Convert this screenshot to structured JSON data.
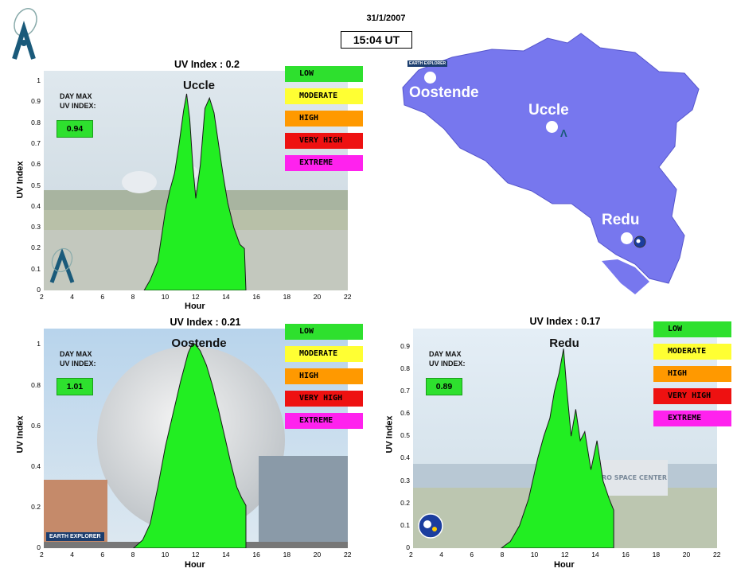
{
  "header": {
    "date": "31/1/2007",
    "time": "15:04 UT"
  },
  "legend": [
    "LOW",
    "MODERATE",
    "HIGH",
    "VERY HIGH",
    "EXTREME"
  ],
  "legend_colors": [
    "#2ee02e",
    "#ffff33",
    "#ff9900",
    "#ee1111",
    "#ff22ee"
  ],
  "panels": {
    "uccle": {
      "title": "UV Index : 0.2",
      "site": "Uccle",
      "daymax_label_1": "DAY MAX",
      "daymax_label_2": "UV INDEX:",
      "daymax_value": "0.94",
      "xlabel": "Hour",
      "ylabel": "UV Index"
    },
    "oostende": {
      "title": "UV Index : 0.21",
      "site": "Oostende",
      "daymax_label_1": "DAY MAX",
      "daymax_label_2": "UV INDEX:",
      "daymax_value": "1.01",
      "xlabel": "Hour",
      "ylabel": "UV Index",
      "badge": "EARTH EXPLORER"
    },
    "redu": {
      "title": "UV Index : 0.17",
      "site": "Redu",
      "daymax_label_1": "DAY MAX",
      "daymax_label_2": "UV INDEX:",
      "daymax_value": "0.89",
      "xlabel": "Hour",
      "ylabel": "UV Index",
      "sign": "EURO SPACE CENTER"
    }
  },
  "map": {
    "labels": {
      "oostende": "Oostende",
      "uccle": "Uccle",
      "redu": "Redu"
    },
    "badge": "EARTH EXPLORER",
    "fill": "#7777ee"
  },
  "chart_data": [
    {
      "type": "area",
      "title": "UV Index : 0.2",
      "subtitle": "Uccle",
      "xlabel": "Hour",
      "ylabel": "UV Index",
      "xlim": [
        2,
        22
      ],
      "ylim": [
        0,
        1.05
      ],
      "xticks": [
        2,
        4,
        6,
        8,
        10,
        12,
        14,
        16,
        18,
        20,
        22
      ],
      "yticks": [
        0,
        0.1,
        0.2,
        0.3,
        0.4,
        0.5,
        0.6,
        0.7,
        0.8,
        0.9,
        1
      ],
      "x": [
        8.6,
        9.0,
        9.5,
        10.0,
        10.3,
        10.6,
        10.9,
        11.2,
        11.4,
        11.6,
        11.8,
        12.0,
        12.3,
        12.6,
        12.9,
        13.2,
        13.5,
        13.8,
        14.1,
        14.5,
        14.9,
        15.2,
        15.3
      ],
      "values": [
        0,
        0.05,
        0.14,
        0.38,
        0.48,
        0.56,
        0.7,
        0.86,
        0.94,
        0.82,
        0.6,
        0.44,
        0.6,
        0.87,
        0.92,
        0.85,
        0.7,
        0.55,
        0.42,
        0.3,
        0.22,
        0.2,
        0
      ],
      "color": "#22ee22"
    },
    {
      "type": "area",
      "title": "UV Index : 0.21",
      "subtitle": "Oostende",
      "xlabel": "Hour",
      "ylabel": "UV Index",
      "xlim": [
        2,
        22
      ],
      "ylim": [
        0,
        1.08
      ],
      "xticks": [
        2,
        4,
        6,
        8,
        10,
        12,
        14,
        16,
        18,
        20,
        22
      ],
      "yticks": [
        0,
        0.2,
        0.4,
        0.6,
        0.8,
        1
      ],
      "x": [
        7.9,
        8.5,
        9.0,
        9.5,
        10.0,
        10.5,
        11.0,
        11.5,
        11.8,
        12.0,
        12.3,
        12.7,
        13.1,
        13.5,
        13.9,
        14.3,
        14.7,
        15.0,
        15.3,
        15.3
      ],
      "values": [
        0,
        0.04,
        0.12,
        0.3,
        0.5,
        0.66,
        0.82,
        0.96,
        1.01,
        1.0,
        0.97,
        0.9,
        0.8,
        0.68,
        0.55,
        0.42,
        0.3,
        0.25,
        0.21,
        0
      ],
      "color": "#22ee22"
    },
    {
      "type": "area",
      "title": "UV Index : 0.17",
      "subtitle": "Redu",
      "xlabel": "Hour",
      "ylabel": "UV Index",
      "xlim": [
        2,
        22
      ],
      "ylim": [
        0,
        0.98
      ],
      "xticks": [
        2,
        4,
        6,
        8,
        10,
        12,
        14,
        16,
        18,
        20,
        22
      ],
      "yticks": [
        0,
        0.1,
        0.2,
        0.3,
        0.4,
        0.5,
        0.6,
        0.7,
        0.8,
        0.9
      ],
      "x": [
        7.8,
        8.4,
        9.0,
        9.6,
        10.2,
        10.6,
        11.0,
        11.3,
        11.6,
        11.9,
        12.1,
        12.4,
        12.7,
        13.0,
        13.3,
        13.7,
        14.1,
        14.5,
        14.9,
        15.2,
        15.2
      ],
      "values": [
        0,
        0.03,
        0.1,
        0.22,
        0.4,
        0.5,
        0.58,
        0.7,
        0.78,
        0.89,
        0.72,
        0.5,
        0.62,
        0.48,
        0.52,
        0.35,
        0.48,
        0.3,
        0.22,
        0.17,
        0
      ],
      "color": "#22ee22"
    }
  ]
}
